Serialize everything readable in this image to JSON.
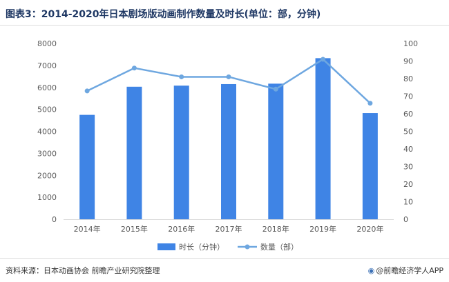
{
  "title": "图表3：2014-2020年日本剧场版动画制作数量及时长(单位：部，分钟)",
  "source": "资料来源：日本动画协会 前瞻产业研究院整理",
  "brand": "@前瞻经济学人APP",
  "colors": {
    "bar": "#3f84e5",
    "line": "#6ea7e0",
    "title": "#1f3864"
  },
  "chart_data": {
    "type": "bar",
    "categories": [
      "2014年",
      "2015年",
      "2016年",
      "2017年",
      "2018年",
      "2019年",
      "2020年"
    ],
    "series": [
      {
        "name": "时长（分钟）",
        "type": "bar",
        "axis": "left",
        "values": [
          4750,
          6030,
          6080,
          6150,
          6170,
          7330,
          4830
        ]
      },
      {
        "name": "数量（部）",
        "type": "line",
        "axis": "right",
        "values": [
          73,
          86,
          81,
          81,
          74,
          91,
          66
        ]
      }
    ],
    "y_left": {
      "min": 0,
      "max": 8000,
      "step": 1000
    },
    "y_right": {
      "min": 0,
      "max": 100,
      "step": 10
    },
    "legend_position": "bottom",
    "grid": false
  }
}
